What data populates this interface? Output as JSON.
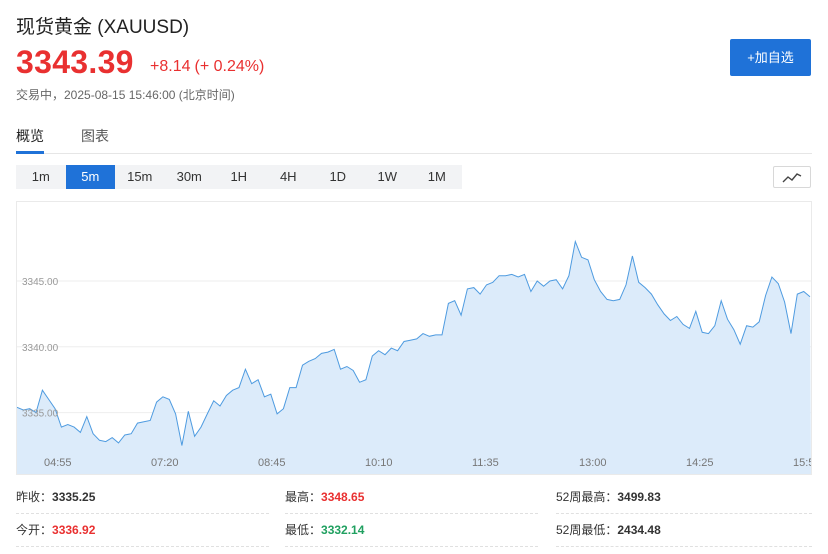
{
  "header": {
    "title": "现货黄金  (XAUUSD)",
    "price": "3343.39",
    "change": "+8.14",
    "change_pct": "(+ 0.24%)",
    "status": "交易中，2025-08-15 15:46:00  (北京时间)",
    "add_button": "+加自选"
  },
  "tabs": [
    {
      "label": "概览",
      "active": true
    },
    {
      "label": "图表",
      "active": false
    }
  ],
  "intervals": [
    {
      "label": "1m",
      "active": false
    },
    {
      "label": "5m",
      "active": true
    },
    {
      "label": "15m",
      "active": false
    },
    {
      "label": "30m",
      "active": false
    },
    {
      "label": "1H",
      "active": false
    },
    {
      "label": "4H",
      "active": false
    },
    {
      "label": "1D",
      "active": false
    },
    {
      "label": "1W",
      "active": false
    },
    {
      "label": "1M",
      "active": false
    }
  ],
  "chart_type_icon": "line-chart-icon",
  "chart_data": {
    "type": "area",
    "x_tick_labels": [
      "04:55",
      "07:20",
      "08:45",
      "10:10",
      "11:35",
      "13:00",
      "14:25",
      "15:5"
    ],
    "y_tick_labels": [
      "3335.00",
      "3340.00",
      "3345.00"
    ],
    "ylim": [
      3331.4,
      3351.0
    ],
    "values": [
      3335.4,
      3335.2,
      3335.3,
      3335.0,
      3336.7,
      3336.0,
      3335.3,
      3333.9,
      3334.1,
      3333.9,
      3333.5,
      3334.7,
      3333.4,
      3332.9,
      3332.8,
      3333.1,
      3332.7,
      3333.3,
      3333.4,
      3334.2,
      3334.3,
      3334.4,
      3335.8,
      3336.2,
      3336.0,
      3334.9,
      3332.5,
      3335.1,
      3333.2,
      3333.9,
      3334.9,
      3335.9,
      3335.5,
      3336.3,
      3336.7,
      3336.9,
      3338.3,
      3337.2,
      3337.5,
      3336.2,
      3336.4,
      3334.9,
      3335.3,
      3336.9,
      3336.9,
      3338.6,
      3338.9,
      3339.1,
      3339.5,
      3339.6,
      3339.8,
      3338.3,
      3338.5,
      3338.2,
      3337.3,
      3337.5,
      3339.3,
      3339.7,
      3339.4,
      3339.9,
      3339.7,
      3340.4,
      3340.5,
      3340.6,
      3341.0,
      3340.8,
      3340.9,
      3340.9,
      3343.3,
      3343.5,
      3342.4,
      3344.4,
      3344.5,
      3344.0,
      3344.7,
      3344.9,
      3345.4,
      3345.4,
      3345.5,
      3345.3,
      3345.5,
      3344.2,
      3345.0,
      3344.6,
      3345.0,
      3345.1,
      3344.4,
      3345.4,
      3348.0,
      3346.8,
      3346.6,
      3345.1,
      3344.2,
      3343.6,
      3343.5,
      3343.6,
      3344.7,
      3346.9,
      3344.9,
      3344.5,
      3344.0,
      3343.2,
      3342.5,
      3342.0,
      3342.3,
      3341.7,
      3341.4,
      3342.7,
      3341.1,
      3341.0,
      3341.6,
      3343.5,
      3342.1,
      3341.3,
      3340.2,
      3341.6,
      3341.5,
      3341.9,
      3343.9,
      3345.3,
      3344.8,
      3343.4,
      3341.0,
      3344.0,
      3344.2,
      3343.8
    ]
  },
  "stats": {
    "prev_close_label": "昨收：",
    "prev_close": "3335.25",
    "high_label": "最高：",
    "high": "3348.65",
    "wk52_high_label": "52周最高：",
    "wk52_high": "3499.83",
    "open_label": "今开：",
    "open": "3336.92",
    "low_label": "最低：",
    "low": "3332.14",
    "wk52_low_label": "52周最低：",
    "wk52_low": "2434.48"
  }
}
